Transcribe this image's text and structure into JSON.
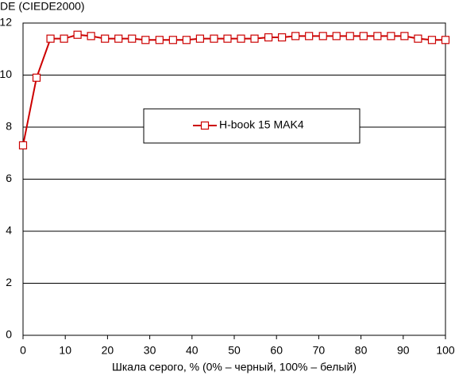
{
  "chart_data": {
    "type": "line",
    "ylabel": "DE (CIEDE2000)",
    "xlabel": "Шкала серого, % (0% – черный, 100% – белый)",
    "x": [
      0,
      3.2,
      6.5,
      9.7,
      12.9,
      16.1,
      19.4,
      22.6,
      25.8,
      29,
      32.3,
      35.5,
      38.7,
      41.9,
      45.2,
      48.4,
      51.6,
      54.8,
      58.1,
      61.3,
      64.5,
      67.7,
      71,
      74.2,
      77.4,
      80.6,
      83.9,
      87.1,
      90.3,
      93.5,
      96.8,
      100
    ],
    "series": [
      {
        "name": "H-book 15 MAK4",
        "color": "#cc0000",
        "values": [
          7.3,
          9.9,
          11.4,
          11.4,
          11.55,
          11.5,
          11.4,
          11.4,
          11.4,
          11.35,
          11.35,
          11.35,
          11.35,
          11.4,
          11.4,
          11.4,
          11.4,
          11.4,
          11.45,
          11.45,
          11.5,
          11.5,
          11.5,
          11.5,
          11.5,
          11.5,
          11.5,
          11.5,
          11.5,
          11.4,
          11.35,
          11.35
        ]
      }
    ],
    "xlim": [
      0,
      100
    ],
    "xticks": [
      0,
      10,
      20,
      30,
      40,
      50,
      60,
      70,
      80,
      90,
      100
    ],
    "ylim": [
      0,
      12
    ],
    "yticks": [
      0,
      2,
      4,
      6,
      8,
      10,
      12
    ],
    "grid": true
  }
}
